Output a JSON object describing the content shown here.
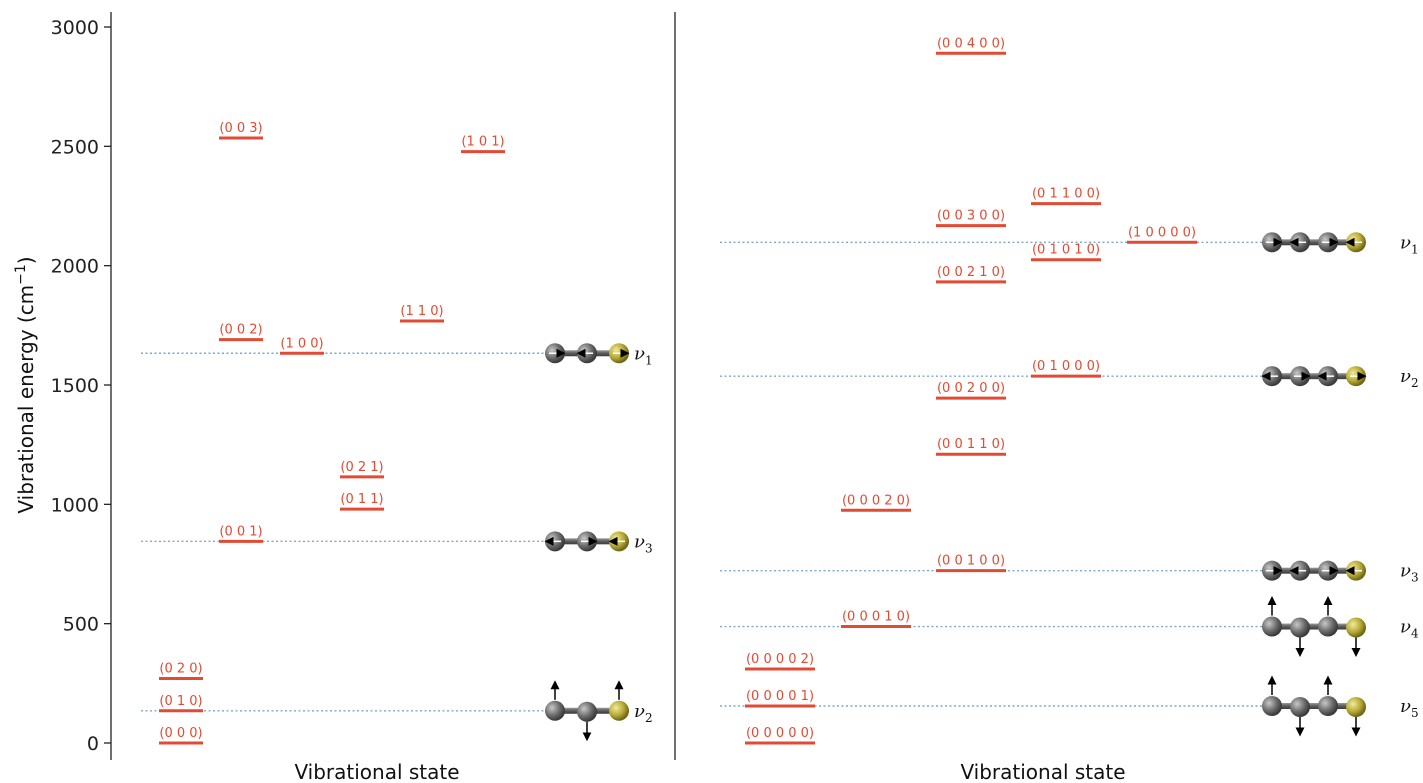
{
  "chart_data": {
    "type": "energy-level-diagram",
    "ylabel_main": "Vibrational energy (cm",
    "ylabel_sup": "−1",
    "ylabel_end": ")",
    "ylim": [
      0,
      3000
    ],
    "yticks": [
      0,
      500,
      1000,
      1500,
      2000,
      2500,
      3000
    ],
    "colors": {
      "level": "#e34a33",
      "mode_line": "#7fa7cf",
      "atom_c": "#6b6b6b",
      "atom_s": "#b5a935"
    },
    "panels": [
      {
        "xlabel": "Vibrational state",
        "levels": [
          {
            "label": "(0 0 0)",
            "energy": 0,
            "col": 0
          },
          {
            "label": "(0 1 0)",
            "energy": 135,
            "col": 0
          },
          {
            "label": "(0 2 0)",
            "energy": 270,
            "col": 0
          },
          {
            "label": "(0 0 1)",
            "energy": 845,
            "col": 1
          },
          {
            "label": "(0 0 2)",
            "energy": 1690,
            "col": 1
          },
          {
            "label": "(0 0 3)",
            "energy": 2535,
            "col": 1
          },
          {
            "label": "(1 0 0)",
            "energy": 1633,
            "col": 2
          },
          {
            "label": "(0 1 1)",
            "energy": 980,
            "col": 3
          },
          {
            "label": "(0 2 1)",
            "energy": 1115,
            "col": 3
          },
          {
            "label": "(1 1 0)",
            "energy": 1768,
            "col": 4
          },
          {
            "label": "(1 0 1)",
            "energy": 2478,
            "col": 5
          }
        ],
        "modes": [
          {
            "name": "ν",
            "sub": "1",
            "energy": 1633,
            "atoms": 3,
            "motion": "stretch"
          },
          {
            "name": "ν",
            "sub": "3",
            "energy": 845,
            "atoms": 3,
            "motion": "stretch"
          },
          {
            "name": "ν",
            "sub": "2",
            "energy": 135,
            "atoms": 3,
            "motion": "bend"
          }
        ]
      },
      {
        "xlabel": "Vibrational state",
        "levels": [
          {
            "label": "(0 0 0 0 0)",
            "energy": 0,
            "col": 0
          },
          {
            "label": "(0 0 0 0 1)",
            "energy": 155,
            "col": 0
          },
          {
            "label": "(0 0 0 0 2)",
            "energy": 310,
            "col": 0
          },
          {
            "label": "(0 0 0 1 0)",
            "energy": 488,
            "col": 1
          },
          {
            "label": "(0 0 0 2 0)",
            "energy": 975,
            "col": 1
          },
          {
            "label": "(0 0 1 0 0)",
            "energy": 722,
            "col": 2
          },
          {
            "label": "(0 0 1 1 0)",
            "energy": 1210,
            "col": 2
          },
          {
            "label": "(0 0 2 0 0)",
            "energy": 1445,
            "col": 2
          },
          {
            "label": "(0 0 2 1 0)",
            "energy": 1932,
            "col": 2
          },
          {
            "label": "(0 0 3 0 0)",
            "energy": 2168,
            "col": 2
          },
          {
            "label": "(0 0 4 0 0)",
            "energy": 2890,
            "col": 2
          },
          {
            "label": "(0 1 0 0 0)",
            "energy": 1537,
            "col": 3
          },
          {
            "label": "(0 1 0 1 0)",
            "energy": 2025,
            "col": 3
          },
          {
            "label": "(0 1 1 0 0)",
            "energy": 2260,
            "col": 3
          },
          {
            "label": "(1 0 0 0 0)",
            "energy": 2098,
            "col": 4
          }
        ],
        "modes": [
          {
            "name": "ν",
            "sub": "1",
            "energy": 2098,
            "atoms": 4,
            "motion": "stretch"
          },
          {
            "name": "ν",
            "sub": "2",
            "energy": 1537,
            "atoms": 4,
            "motion": "stretch"
          },
          {
            "name": "ν",
            "sub": "3",
            "energy": 722,
            "atoms": 4,
            "motion": "stretch"
          },
          {
            "name": "ν",
            "sub": "4",
            "energy": 488,
            "atoms": 4,
            "motion": "bend"
          },
          {
            "name": "ν",
            "sub": "5",
            "energy": 155,
            "atoms": 4,
            "motion": "bend"
          }
        ]
      }
    ]
  }
}
